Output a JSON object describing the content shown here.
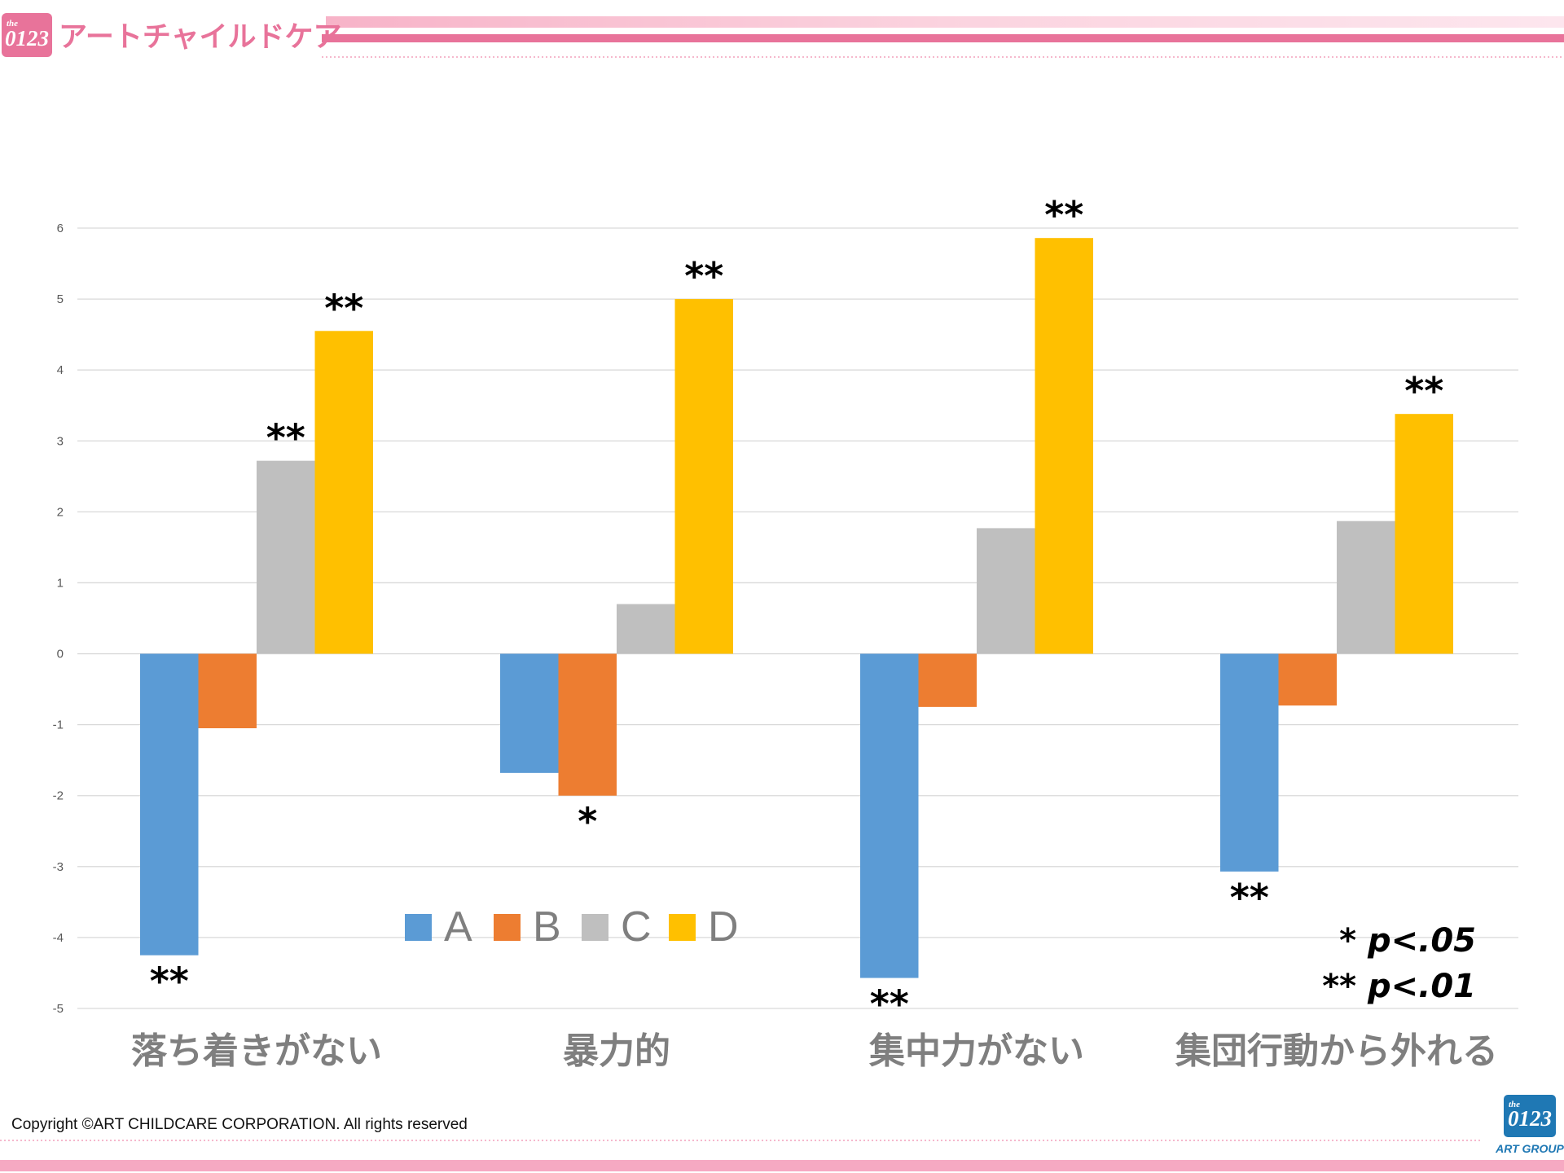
{
  "header": {
    "brand_badge": "0123",
    "brand_badge_small": "the",
    "brand_name": "アートチャイルドケア"
  },
  "footer": {
    "copyright": "Copyright ©ART CHILDCARE CORPORATION. All rights reserved",
    "logo_text": "0123",
    "logo_small": "the",
    "logo_caption": "ART GROUP"
  },
  "colors": {
    "A": "#5B9BD5",
    "B": "#ED7D31",
    "C": "#BFBFBF",
    "D": "#FFC000",
    "brand_pink": "#E8739A",
    "brand_blue": "#1F78B4"
  },
  "chart_data": {
    "type": "bar",
    "title": "",
    "xlabel": "",
    "ylabel": "",
    "ylim": [
      -5,
      6
    ],
    "yticks": [
      6,
      5,
      4,
      3,
      2,
      1,
      0,
      -1,
      -2,
      -3,
      -4,
      -5
    ],
    "ytick_labels": [
      "6",
      "5",
      "4",
      "3",
      "2",
      "1",
      "0",
      "-1",
      "-2",
      "-3",
      "-4",
      "-5"
    ],
    "grid": true,
    "legend_position": "bottom-center",
    "categories": [
      "落ち着きがない",
      "暴力的",
      "集中力がない",
      "集団行動から外れる"
    ],
    "series": [
      {
        "name": "A",
        "values": [
          -4.25,
          -1.68,
          -4.57,
          -3.07
        ],
        "significance": [
          "**",
          "",
          "**",
          "**"
        ]
      },
      {
        "name": "B",
        "values": [
          -1.05,
          -2.0,
          -0.75,
          -0.73
        ],
        "significance": [
          "",
          "*",
          "",
          ""
        ]
      },
      {
        "name": "C",
        "values": [
          2.72,
          0.7,
          1.77,
          1.87
        ],
        "significance": [
          "**",
          "",
          "",
          ""
        ]
      },
      {
        "name": "D",
        "values": [
          4.55,
          5.0,
          5.86,
          3.38
        ],
        "significance": [
          "**",
          "**",
          "**",
          "**"
        ]
      }
    ],
    "notes": [
      {
        "mark": "*",
        "text": "p<.05"
      },
      {
        "mark": "**",
        "text": "p<.01"
      }
    ]
  }
}
